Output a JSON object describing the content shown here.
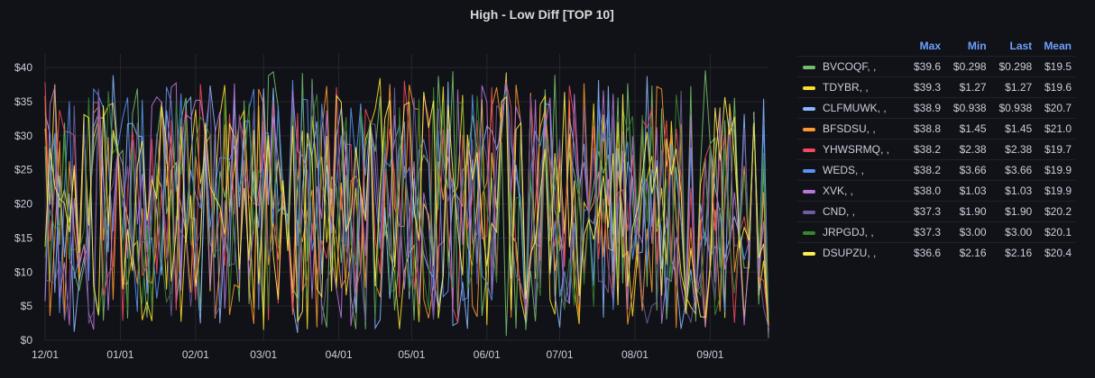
{
  "panel": {
    "title": "High - Low Diff [TOP 10]"
  },
  "legend": {
    "headers": {
      "max": "Max",
      "min": "Min",
      "last": "Last",
      "mean": "Mean"
    }
  },
  "chart_data": {
    "type": "line",
    "title": "High - Low Diff [TOP 10]",
    "xlabel": "",
    "ylabel": "",
    "ylim": [
      0,
      42
    ],
    "yticks": [
      "$0",
      "$5",
      "$10",
      "$15",
      "$20",
      "$25",
      "$30",
      "$35",
      "$40"
    ],
    "xticks": [
      "12/01",
      "01/01",
      "02/01",
      "03/01",
      "04/01",
      "05/01",
      "06/01",
      "07/01",
      "08/01",
      "09/01"
    ],
    "x_range": [
      "12/01",
      "09/25"
    ],
    "grid": true,
    "legend_placement": "right",
    "series": [
      {
        "name": "BVCOQF, ,",
        "color": "#73bf69",
        "max": "$39.6",
        "min": "$0.298",
        "last": "$0.298",
        "mean": "$19.5",
        "max_value": 39.6,
        "min_value": 0.298,
        "mean_value": 19.5
      },
      {
        "name": "TDYBR, ,",
        "color": "#fade2a",
        "max": "$39.3",
        "min": "$1.27",
        "last": "$1.27",
        "mean": "$19.6",
        "max_value": 39.3,
        "min_value": 1.27,
        "mean_value": 19.6
      },
      {
        "name": "CLFMUWK, ,",
        "color": "#8ab8ff",
        "max": "$38.9",
        "min": "$0.938",
        "last": "$0.938",
        "mean": "$20.7",
        "max_value": 38.9,
        "min_value": 0.938,
        "mean_value": 20.7
      },
      {
        "name": "BFSDSU, ,",
        "color": "#ff9830",
        "max": "$38.8",
        "min": "$1.45",
        "last": "$1.45",
        "mean": "$21.0",
        "max_value": 38.8,
        "min_value": 1.45,
        "mean_value": 21.0
      },
      {
        "name": "YHWSRMQ, ,",
        "color": "#f2495c",
        "max": "$38.2",
        "min": "$2.38",
        "last": "$2.38",
        "mean": "$19.7",
        "max_value": 38.2,
        "min_value": 2.38,
        "mean_value": 19.7
      },
      {
        "name": "WEDS, ,",
        "color": "#5794f2",
        "max": "$38.2",
        "min": "$3.66",
        "last": "$3.66",
        "mean": "$19.9",
        "max_value": 38.2,
        "min_value": 3.66,
        "mean_value": 19.9
      },
      {
        "name": "XVK, ,",
        "color": "#b877d9",
        "max": "$38.0",
        "min": "$1.03",
        "last": "$1.03",
        "mean": "$19.9",
        "max_value": 38.0,
        "min_value": 1.03,
        "mean_value": 19.9
      },
      {
        "name": "CND, ,",
        "color": "#705da0",
        "max": "$37.3",
        "min": "$1.90",
        "last": "$1.90",
        "mean": "$20.2",
        "max_value": 37.3,
        "min_value": 1.9,
        "mean_value": 20.2
      },
      {
        "name": "JRPGDJ, ,",
        "color": "#37872d",
        "max": "$37.3",
        "min": "$3.00",
        "last": "$3.00",
        "mean": "$20.1",
        "max_value": 37.3,
        "min_value": 3.0,
        "mean_value": 20.1
      },
      {
        "name": "DSUPZU, ,",
        "color": "#ffee52",
        "max": "$36.6",
        "min": "$2.16",
        "last": "$2.16",
        "mean": "$20.4",
        "max_value": 36.6,
        "min_value": 2.16,
        "mean_value": 20.4
      }
    ]
  }
}
